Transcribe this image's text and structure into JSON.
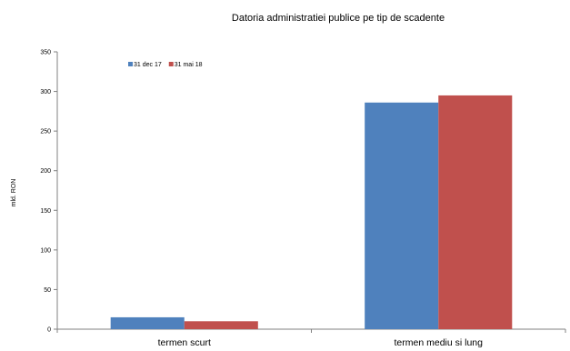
{
  "chart_data": {
    "type": "bar",
    "title": "Datoria administratiei publice  pe tip de scadente",
    "xlabel": "",
    "ylabel": "mld. RON",
    "categories": [
      "termen scurt",
      "termen mediu si lung"
    ],
    "series": [
      {
        "name": "31 dec 17",
        "values": [
          15,
          286
        ],
        "color": "#4f81bd"
      },
      {
        "name": "31 mai 18",
        "values": [
          10,
          295
        ],
        "color": "#c0504d"
      }
    ],
    "ylim": [
      0,
      350
    ],
    "yticks": [
      0,
      50,
      100,
      150,
      200,
      250,
      300,
      350
    ],
    "grid": false,
    "legend_position": "top-left"
  }
}
